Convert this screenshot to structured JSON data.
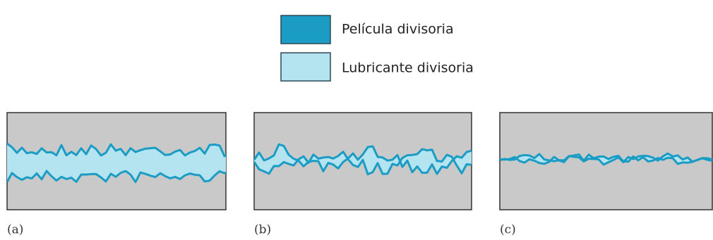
{
  "legend": [
    {
      "label": "Película divisoria"
    },
    {
      "label": "Lubricante divisoria"
    }
  ],
  "panels": [
    {
      "label": "(a)"
    },
    {
      "label": "(b)"
    },
    {
      "label": "(c)"
    }
  ]
}
